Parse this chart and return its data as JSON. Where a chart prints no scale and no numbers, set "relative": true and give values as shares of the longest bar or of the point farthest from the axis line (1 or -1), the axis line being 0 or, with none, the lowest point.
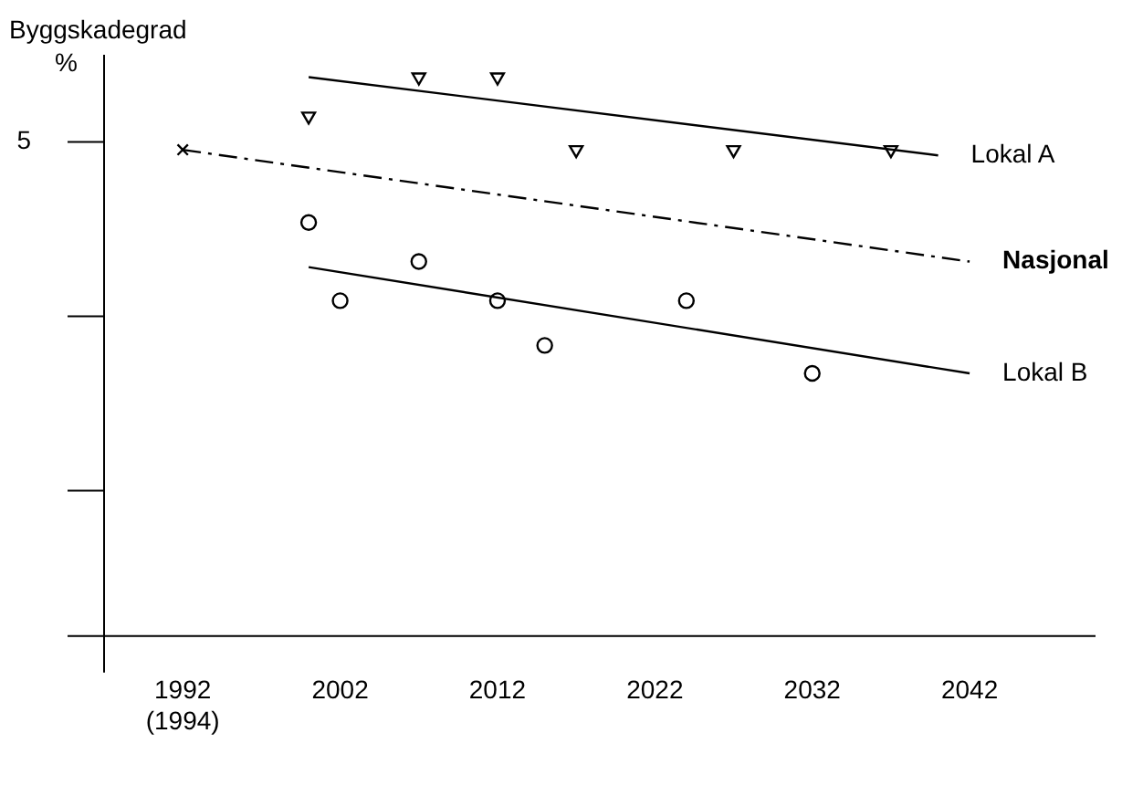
{
  "chart_data": {
    "type": "line",
    "ylabel": "Byggskadegrad\n%",
    "relative": true,
    "grid": false,
    "legend": false,
    "xlim": [
      1987,
      2050
    ],
    "xticks": [
      {
        "value": 1992,
        "label": "1992\n(1994)"
      },
      2002,
      2012,
      2022,
      2032,
      2042
    ],
    "annotations": [
      "5"
    ],
    "series": [
      {
        "name": "Lokal A",
        "color": "#000000",
        "x": [
          2000,
          2040
        ],
        "values": [
          1.0,
          0.86
        ],
        "line_style": "solid",
        "marker": "none"
      },
      {
        "type": "scatter",
        "color": "#000000",
        "marker": "triangle",
        "x": [
          2000,
          2007,
          2012,
          2017,
          2027,
          2037
        ],
        "values": [
          0.93,
          1.0,
          1.0,
          0.87,
          0.87,
          0.87
        ]
      },
      {
        "name": "Nasjonal",
        "color": "#000000",
        "x": [
          1992,
          2042
        ],
        "values": [
          0.87,
          0.67
        ],
        "line_style": "dashed",
        "marker": "none"
      },
      {
        "type": "scatter",
        "color": "#000000",
        "marker": "cross",
        "x": [
          1992
        ],
        "values": [
          0.87
        ]
      },
      {
        "name": "Lokal B",
        "color": "#000000",
        "x": [
          2000,
          2042
        ],
        "values": [
          0.66,
          0.47
        ],
        "line_style": "solid",
        "marker": "none"
      },
      {
        "type": "scatter",
        "color": "#000000",
        "marker": "circle",
        "x": [
          2000,
          2002,
          2007,
          2012,
          2015,
          2024,
          2032
        ],
        "values": [
          0.74,
          0.6,
          0.67,
          0.6,
          0.52,
          0.6,
          0.47
        ]
      }
    ]
  }
}
